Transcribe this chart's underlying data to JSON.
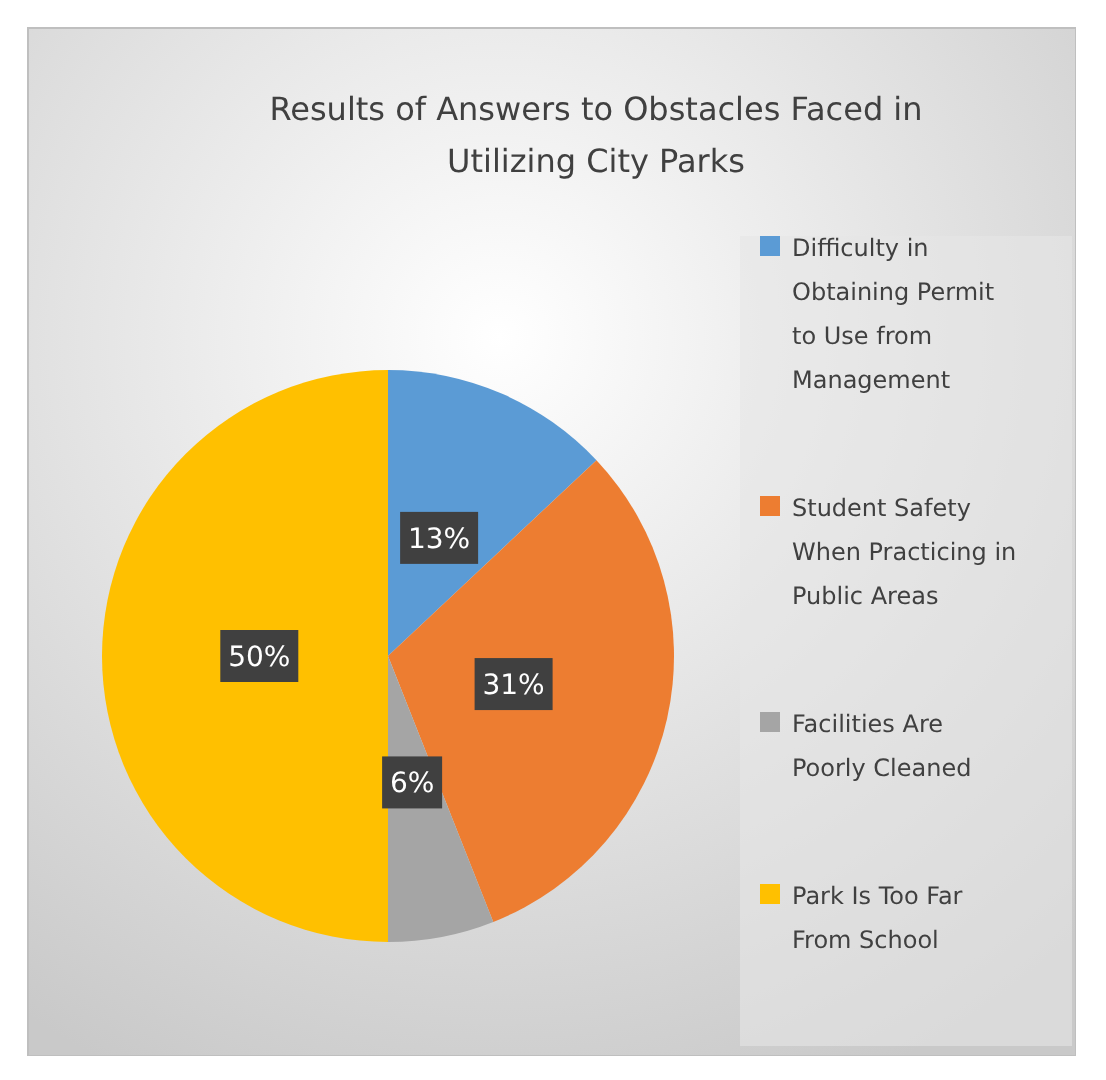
{
  "chart_data": {
    "type": "pie",
    "title": "Results of Answers to Obstacles Faced in Utilizing City Parks",
    "categories": [
      "Difficulty in Obtaining Permit to Use from Management",
      "Student Safety When Practicing in Public Areas",
      "Facilities Are Poorly Cleaned",
      "Park Is Too Far From School"
    ],
    "values": [
      13,
      31,
      6,
      50
    ],
    "value_labels": [
      "13%",
      "31%",
      "6%",
      "50%"
    ],
    "colors": [
      "#5b9bd5",
      "#ed7d31",
      "#a5a5a5",
      "#ffc000"
    ],
    "legend": "right"
  }
}
